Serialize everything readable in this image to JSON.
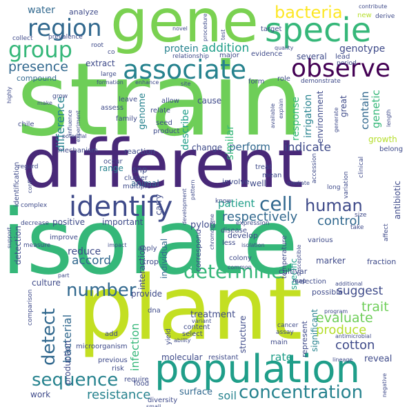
{
  "words": {
    "strain": "strain",
    "isolate": "isolate",
    "different": "different",
    "plant": "plant",
    "gene": "gene",
    "specie": "specie",
    "population": "population",
    "associate": "associate",
    "observe": "observe",
    "identify": "identify",
    "region": "region",
    "group": "group",
    "bacteria": "bacteria",
    "cell": "cell",
    "human": "human",
    "compare": "compare",
    "sequence": "sequence",
    "determine": "determine",
    "concentration": "concentration",
    "number": "number",
    "detect": "detect",
    "resistance": "resistance",
    "presence": "presence",
    "protein": "protein",
    "addition": "addition",
    "genotype": "genotype",
    "water": "water",
    "analyze": "analyze",
    "cotton": "cotton",
    "trait": "trait",
    "evaluate": "evaluate",
    "produce": "produce",
    "suggest": "suggest",
    "control": "control",
    "respectively": "respectively",
    "patient": "patient",
    "indicate": "indicate",
    "perform": "perform",
    "accord": "accord",
    "bacterial": "bacterial",
    "infection": "infection",
    "soil": "soil",
    "surface": "surface",
    "treatment": "treatment",
    "molecular": "molecular",
    "reveal": "reveal",
    "rate": "rate",
    "contain": "contain",
    "genetic": "genetic",
    "growth": "growth",
    "similar": "similar",
    "describe": "describe",
    "genome": "genome",
    "difference": "difference",
    "irrigation": "irrigation",
    "response": "response",
    "cause": "cause",
    "change": "change",
    "great": "great",
    "environment": "environment",
    "several": "several",
    "extract": "extract",
    "compound": "compound",
    "specific": "specific",
    "marker": "marker",
    "significant": "significant",
    "individual": "individual",
    "detection": "detection",
    "reduce": "reduce",
    "positive": "positive",
    "important": "important",
    "culture": "culture",
    "provide": "provide",
    "animal": "animal",
    "range": "range",
    "snp": "snp",
    "interaction": "interaction",
    "fraction": "fraction",
    "antibiotic": "antibiotic",
    "structure": "structure",
    "represent": "represent",
    "possible": "possible",
    "selection": "selection",
    "carry": "carry",
    "pylori": "pylori",
    "correspond": "correspond",
    "cultivar": "cultivar",
    "colony": "colony",
    "develop": "develop",
    "less": "less",
    "crop": "crop",
    "reaction": "reaction",
    "mechanism": "mechanism",
    "identification": "identification",
    "microorganism": "microorganism",
    "production": "production",
    "work": "work",
    "previous": "previous",
    "risk": "risk",
    "food": "food",
    "diversity": "diversity",
    "resistant": "resistant",
    "main": "main",
    "add": "add",
    "dna": "dna",
    "content": "content",
    "select": "select",
    "yield": "yield",
    "well": "well",
    "multiple": "multiple",
    "cluster": "cluster",
    "occur": "occur",
    "involve": "involve",
    "treat": "treat",
    "mean": "mean",
    "temperature": "temperature",
    "disease": "disease",
    "belong": "belong",
    "new": "new",
    "derive": "derive",
    "contribute": "contribute",
    "target": "target",
    "evidence": "evidence",
    "lead": "lead",
    "role": "role",
    "form": "form",
    "demonstrate": "demonstrate",
    "major": "major",
    "relationship": "relationship",
    "prevalence": "prevalence",
    "collect": "collect",
    "root": "root",
    "co": "co",
    "large": "large",
    "formation": "formation",
    "enhance": "enhance",
    "allow": "allow",
    "leave": "leave",
    "assess": "assess",
    "family": "family",
    "relate": "relate",
    "seed": "seed",
    "product": "product",
    "experiment": "experiment",
    "influence": "influence",
    "potential": "potential",
    "chile": "chile",
    "highly": "highly",
    "make": "make",
    "grow": "grow",
    "regard": "regard",
    "improve": "improve",
    "measure": "measure",
    "confirm": "confirm",
    "complex": "complex",
    "decrease": "decrease",
    "support": "support",
    "apply": "apply",
    "impact": "impact",
    "part": "part",
    "comparison": "comparison",
    "development": "development",
    "pattern": "pattern",
    "know": "know",
    "expression": "expression",
    "isolation": "isolation",
    "common": "common",
    "chromosome": "chromosome",
    "various": "various",
    "susceptible": "susceptible",
    "map": "map",
    "additional": "additional",
    "cancer": "cancer",
    "assay": "assay",
    "program": "program",
    "antimicrobial": "antimicrobial",
    "lineage": "lineage",
    "negative": "negative",
    "variant": "variant",
    "ability": "ability",
    "require": "require",
    "small": "small",
    "take": "take",
    "affect": "affect",
    "size": "size",
    "long": "long",
    "clinical": "clinical",
    "variation": "variation",
    "accession": "accession",
    "mediate": "mediate",
    "generate": "generate",
    "length": "length",
    "period": "period",
    "available": "available",
    "explain": "explain",
    "site": "site",
    "quality": "quality",
    "novel": "novel",
    "procedure": "procedure",
    "test": "test"
  },
  "colors": {
    "purple": "#440154",
    "indigo": "#482878",
    "blue": "#3e4a89",
    "slate": "#31688e",
    "teal": "#26828e",
    "sea": "#1f9e89",
    "green": "#35b779",
    "lime": "#6ece58",
    "yellowgreen": "#b5de2b",
    "yellow": "#fde725"
  }
}
